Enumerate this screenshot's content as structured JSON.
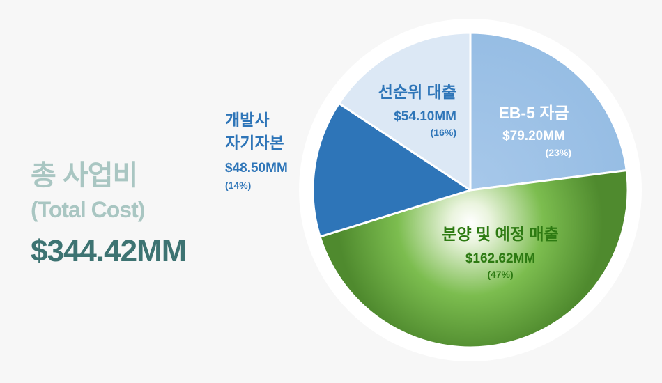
{
  "summary": {
    "title": "총 사업비",
    "subtitle": "(Total Cost)",
    "value": "$344.42MM"
  },
  "chart_data": {
    "type": "pie",
    "slices": [
      {
        "label": "EB-5 자금",
        "value": 79.2,
        "value_text": "$79.20MM",
        "percent_text": "(23%)",
        "color": "#9fc3e7"
      },
      {
        "label": "분양 및 예정 매출",
        "value": 162.62,
        "value_text": "$162.62MM",
        "percent_text": "(47%)",
        "color": "#6aaa47"
      },
      {
        "label": "개발사 자기자본",
        "value": 48.5,
        "value_text": "$48.50MM",
        "percent_text": "(14%)",
        "color": "#2e75b8"
      },
      {
        "label": "선순위 대출",
        "value": 54.1,
        "value_text": "$54.10MM",
        "percent_text": "(16%)",
        "color": "#dce8f5"
      }
    ],
    "label_colors": {
      "blue": "#2e75b8",
      "green": "#2d7a12"
    }
  }
}
